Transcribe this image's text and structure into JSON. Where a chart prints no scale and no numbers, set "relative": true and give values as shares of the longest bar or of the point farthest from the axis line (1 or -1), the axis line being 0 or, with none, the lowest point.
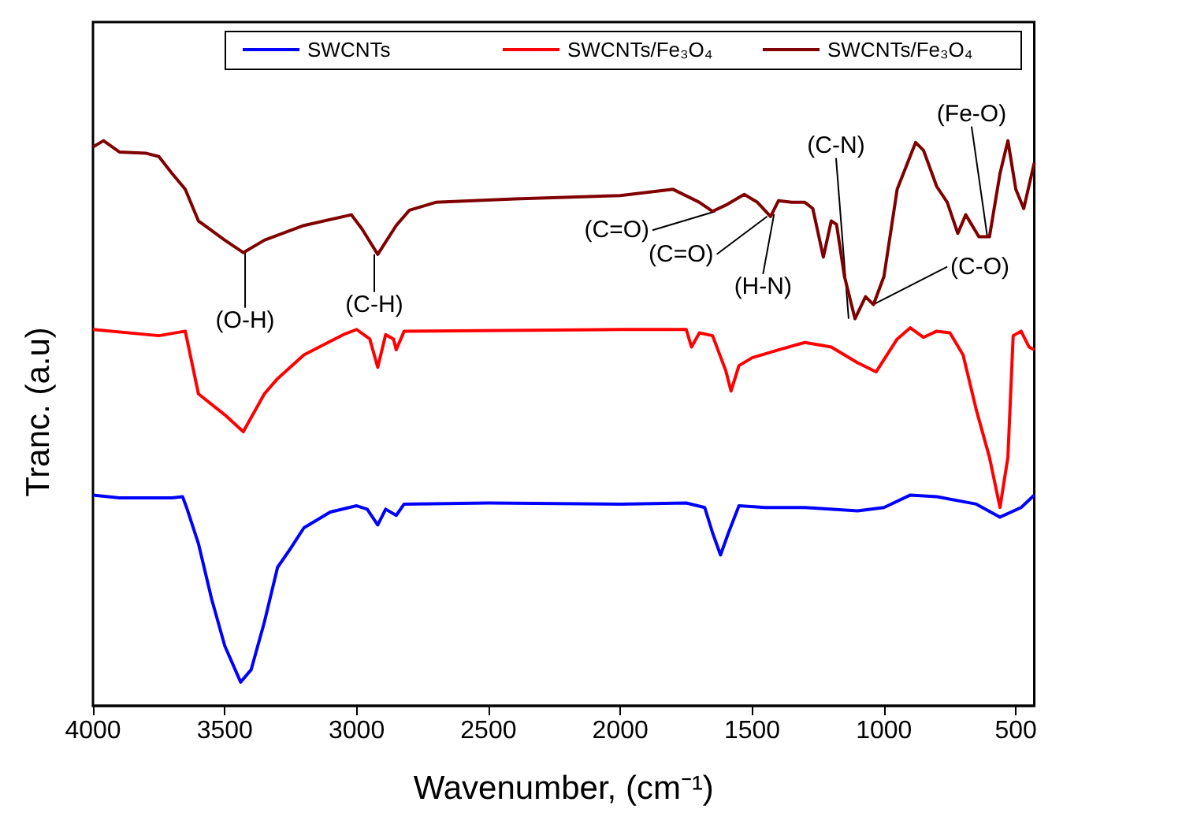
{
  "chart_data": {
    "type": "line",
    "relative": true,
    "xlabel": "Wavenumber, (cm⁻¹)",
    "ylabel": "Tranc. (a.u)",
    "xlim": [
      4000,
      430
    ],
    "xticks": [
      4000,
      3500,
      3000,
      2500,
      2000,
      1500,
      1000,
      500
    ],
    "legend": "top",
    "grid": false,
    "marker": "none",
    "line_style": "solid",
    "series": [
      {
        "name": "SWCNTs",
        "color": "#0000ff",
        "x": [
          4000,
          3900,
          3700,
          3660,
          3645,
          3600,
          3550,
          3500,
          3440,
          3400,
          3350,
          3300,
          3250,
          3200,
          3100,
          3000,
          2960,
          2920,
          2890,
          2850,
          2820,
          2500,
          2000,
          1750,
          1680,
          1650,
          1620,
          1590,
          1550,
          1450,
          1300,
          1100,
          1000,
          900,
          800,
          650,
          560,
          480,
          430
        ],
        "values": [
          0.373,
          0.368,
          0.368,
          0.37,
          0.351,
          0.287,
          0.189,
          0.106,
          0.042,
          0.064,
          0.148,
          0.245,
          0.279,
          0.315,
          0.343,
          0.354,
          0.348,
          0.32,
          0.348,
          0.337,
          0.357,
          0.359,
          0.357,
          0.359,
          0.351,
          0.306,
          0.267,
          0.306,
          0.354,
          0.351,
          0.351,
          0.345,
          0.351,
          0.373,
          0.37,
          0.357,
          0.334,
          0.351,
          0.373
        ]
      },
      {
        "name": "SWCNTs/Fe₃O₄",
        "color": "#ff0000",
        "x": [
          4000,
          3750,
          3650,
          3600,
          3500,
          3430,
          3350,
          3300,
          3200,
          3050,
          3000,
          2950,
          2920,
          2890,
          2860,
          2850,
          2820,
          2000,
          1750,
          1730,
          1700,
          1650,
          1600,
          1580,
          1550,
          1500,
          1400,
          1300,
          1200,
          1100,
          1030,
          950,
          900,
          850,
          800,
          750,
          700,
          650,
          600,
          560,
          530,
          510,
          480,
          450,
          430
        ],
        "values": [
          0.666,
          0.655,
          0.663,
          0.552,
          0.515,
          0.485,
          0.552,
          0.579,
          0.621,
          0.657,
          0.666,
          0.649,
          0.599,
          0.657,
          0.649,
          0.63,
          0.663,
          0.666,
          0.666,
          0.635,
          0.66,
          0.655,
          0.593,
          0.557,
          0.602,
          0.616,
          0.63,
          0.643,
          0.635,
          0.607,
          0.591,
          0.649,
          0.669,
          0.652,
          0.663,
          0.66,
          0.621,
          0.524,
          0.44,
          0.351,
          0.44,
          0.655,
          0.663,
          0.635,
          0.63
        ]
      },
      {
        "name": "SWCNTs/Fe₃O₄",
        "color": "#800000",
        "x": [
          4000,
          3960,
          3900,
          3800,
          3750,
          3700,
          3650,
          3600,
          3500,
          3430,
          3350,
          3200,
          3020,
          2980,
          2920,
          2850,
          2800,
          2700,
          2400,
          2000,
          1800,
          1700,
          1650,
          1600,
          1530,
          1480,
          1430,
          1400,
          1350,
          1300,
          1270,
          1230,
          1200,
          1180,
          1150,
          1110,
          1070,
          1040,
          1000,
          950,
          880,
          850,
          800,
          760,
          720,
          690,
          640,
          600,
          560,
          530,
          500,
          470,
          430
        ],
        "values": [
          0.989,
          1.0,
          0.98,
          0.978,
          0.972,
          0.942,
          0.914,
          0.858,
          0.824,
          0.802,
          0.824,
          0.85,
          0.869,
          0.844,
          0.799,
          0.85,
          0.877,
          0.891,
          0.897,
          0.903,
          0.914,
          0.891,
          0.875,
          0.886,
          0.905,
          0.891,
          0.866,
          0.894,
          0.891,
          0.891,
          0.88,
          0.794,
          0.858,
          0.852,
          0.76,
          0.685,
          0.724,
          0.71,
          0.76,
          0.914,
          0.997,
          0.983,
          0.919,
          0.891,
          0.836,
          0.869,
          0.83,
          0.83,
          0.942,
          1.0,
          0.914,
          0.88,
          0.961
        ]
      }
    ],
    "annotations": [
      {
        "text": "(O-H)",
        "x": 3423,
        "y": 0.802
      },
      {
        "text": "(C-H)",
        "x": 2933,
        "y": 0.799
      },
      {
        "text": "(C=O)",
        "x": 1639,
        "y": 0.875
      },
      {
        "text": "(C=O)",
        "x": 1443,
        "y": 0.866
      },
      {
        "text": "(H-N)",
        "x": 1417,
        "y": 0.87
      },
      {
        "text": "(C-N)",
        "x": 1134,
        "y": 0.685
      },
      {
        "text": "(C-O)",
        "x": 1041,
        "y": 0.71
      },
      {
        "text": "(Fe-O)",
        "x": 608,
        "y": 0.83
      }
    ]
  }
}
